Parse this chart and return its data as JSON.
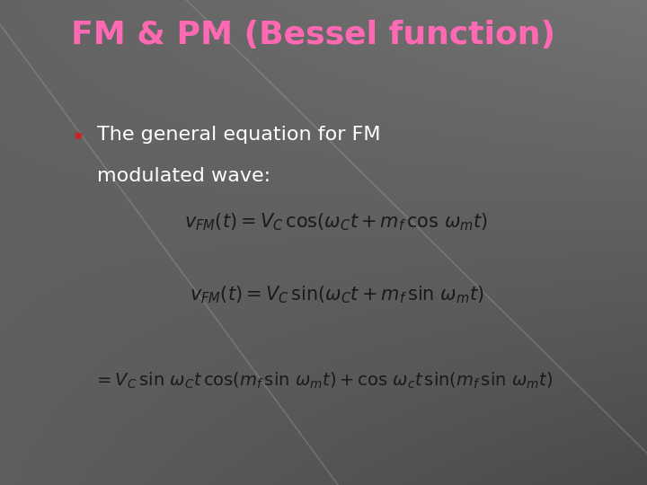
{
  "title": "FM & PM (Bessel function)",
  "title_color": "#FF69B4",
  "title_fontsize": 26,
  "bg_color_tl": "#636363",
  "bg_color_tr": "#727272",
  "bg_color_bl": "#606060",
  "bg_color_br": "#4a4a4a",
  "bullet_text_line1": "The general equation for FM",
  "bullet_text_line2": "modulated wave:",
  "bullet_color": "white",
  "bullet_fontsize": 16,
  "bullet_marker_color": "#CC2222",
  "eq_color": "#1a1a1a",
  "eq_fontsize": 13,
  "diagonal_line_color": "#b0b0b0",
  "diagonal_alpha": 0.3
}
